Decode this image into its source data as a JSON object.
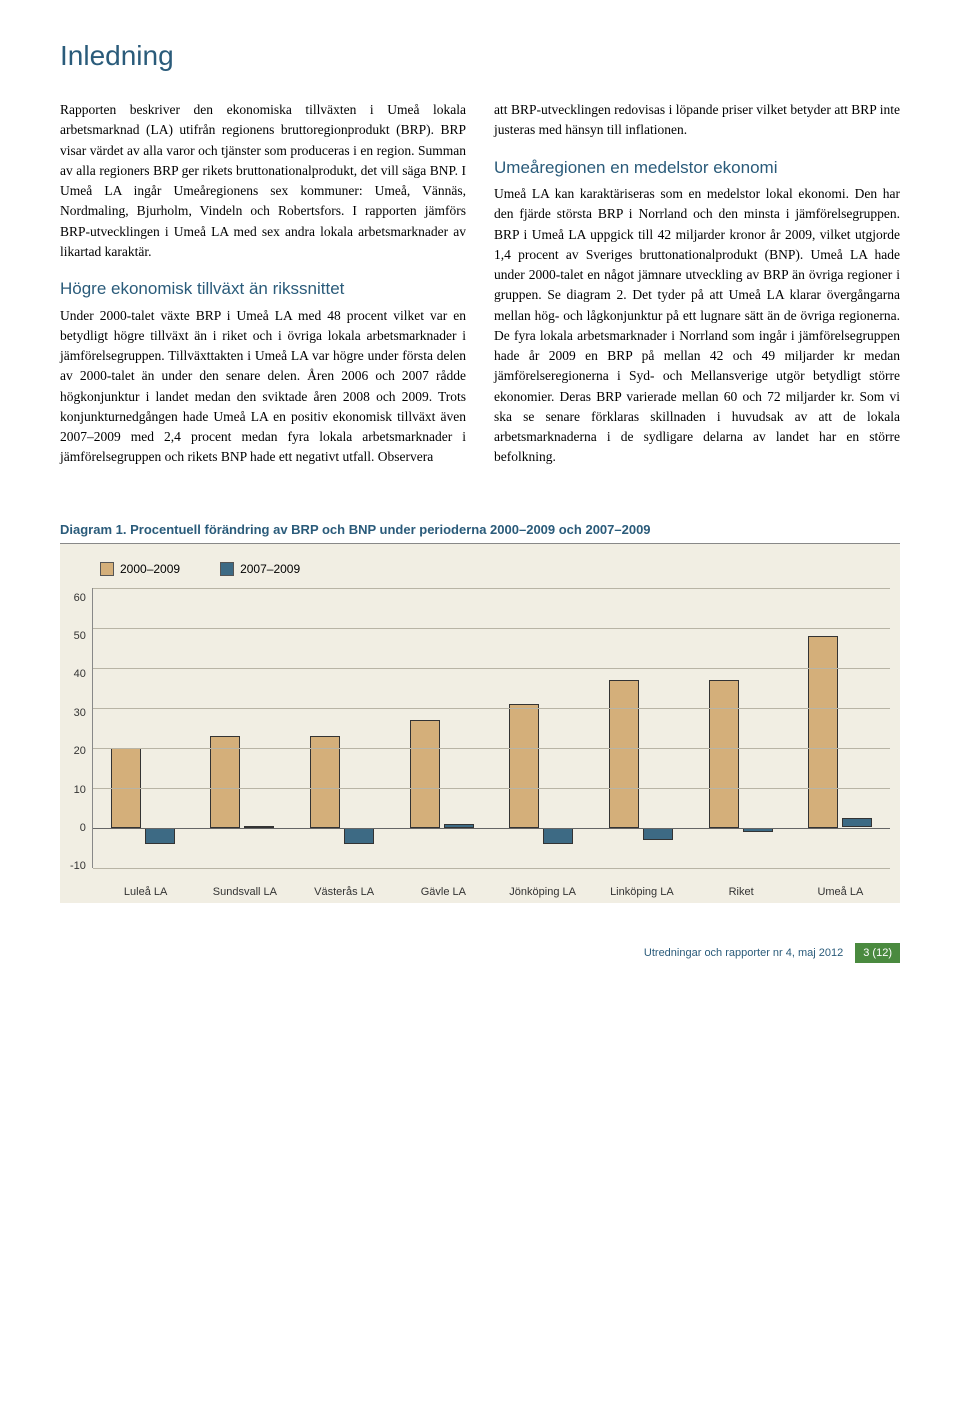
{
  "title": "Inledning",
  "leftColumn": {
    "p1": "Rapporten beskriver den ekonomiska tillväxten i Umeå lokala arbetsmarknad (LA) utifrån regionens bruttoregionprodukt (BRP). BRP visar värdet av alla varor och tjänster som produceras i en region. Summan av alla regioners BRP ger rikets bruttonationalprodukt, det vill säga BNP. I Umeå LA ingår Umeåregionens sex kommuner: Umeå, Vännäs, Nordmaling, Bjurholm, Vindeln och Robertsfors. I rapporten jämförs BRP-utvecklingen i Umeå LA med sex andra lokala arbetsmarknader av likartad karaktär.",
    "h2": "Högre ekonomisk tillväxt än rikssnittet",
    "p2": "Under 2000-talet växte BRP i Umeå LA med 48 procent vilket var en betydligt högre tillväxt än i riket och i övriga lokala arbetsmarknader i jämförelsegruppen. Tillväxttakten i Umeå LA var högre under första delen av 2000-talet än under den senare delen. Åren 2006 och 2007 rådde högkonjunktur i landet medan den sviktade åren 2008 och 2009. Trots konjunkturnedgången hade Umeå LA en positiv ekonomisk tillväxt även 2007–2009 med 2,4 procent medan fyra lokala arbetsmarknader i jämförelsegruppen och rikets BNP hade ett negativt utfall. Observera"
  },
  "rightColumn": {
    "p1": "att BRP-utvecklingen redovisas i löpande priser vilket betyder att BRP inte justeras med hänsyn till inflationen.",
    "h2": "Umeåregionen en medelstor ekonomi",
    "p2": "Umeå LA kan karaktäriseras som en medelstor lokal ekonomi. Den har den fjärde största BRP i Norrland och den minsta i jämförelsegruppen. BRP i Umeå LA uppgick till 42 miljarder kronor år 2009, vilket utgjorde 1,4 procent av Sveriges bruttonationalprodukt (BNP). Umeå LA hade under 2000-talet en något jämnare utveckling av BRP än övriga regioner i gruppen. Se diagram 2. Det tyder på att Umeå LA klarar övergångarna mellan hög- och lågkonjunktur på ett lugnare sätt än de övriga regionerna. De fyra lokala arbetsmarknader i Norrland som ingår i jämförelsegruppen hade år 2009 en BRP på mellan 42 och 49 miljarder kr medan jämförelseregionerna i Syd- och Mellansverige utgör betydligt större ekonomier. Deras BRP varierade mellan 60 och 72 miljarder kr. Som vi ska se senare förklaras skillnaden i huvudsak av att de lokala arbetsmarknaderna i de sydligare delarna av landet har en större befolkning."
  },
  "chart": {
    "title": "Diagram 1. Procentuell förändring av BRP och BNP under perioderna 2000–2009 och 2007–2009",
    "type": "grouped-bar",
    "legend": [
      {
        "label": "2000–2009",
        "color": "#d4af7a"
      },
      {
        "label": "2007–2009",
        "color": "#3d6a84"
      }
    ],
    "background_color": "#f1eee3",
    "grid_color": "#b8b4a5",
    "ylim": [
      -10,
      60
    ],
    "ytick_step": 10,
    "yticks": [
      "60",
      "50",
      "40",
      "30",
      "20",
      "10",
      "0",
      "-10"
    ],
    "categories": [
      "Luleå LA",
      "Sundsvall LA",
      "Västerås LA",
      "Gävle LA",
      "Jönköping LA",
      "Linköping LA",
      "Riket",
      "Umeå LA"
    ],
    "series": [
      {
        "name": "2000–2009",
        "color": "#d4af7a",
        "values": [
          20,
          23,
          23,
          27,
          31,
          37,
          37,
          48
        ]
      },
      {
        "name": "2007–2009",
        "color": "#3d6a84",
        "values": [
          -4,
          0.5,
          -4,
          1,
          -4,
          -3,
          -1,
          2.4
        ]
      }
    ],
    "bar_border": "#333333",
    "title_color": "#2a5b7a",
    "title_fontsize": 13,
    "label_fontsize": 11
  },
  "footer": {
    "text": "Utredningar och rapporter nr 4, maj 2012",
    "pageNum": "3 (12)"
  }
}
